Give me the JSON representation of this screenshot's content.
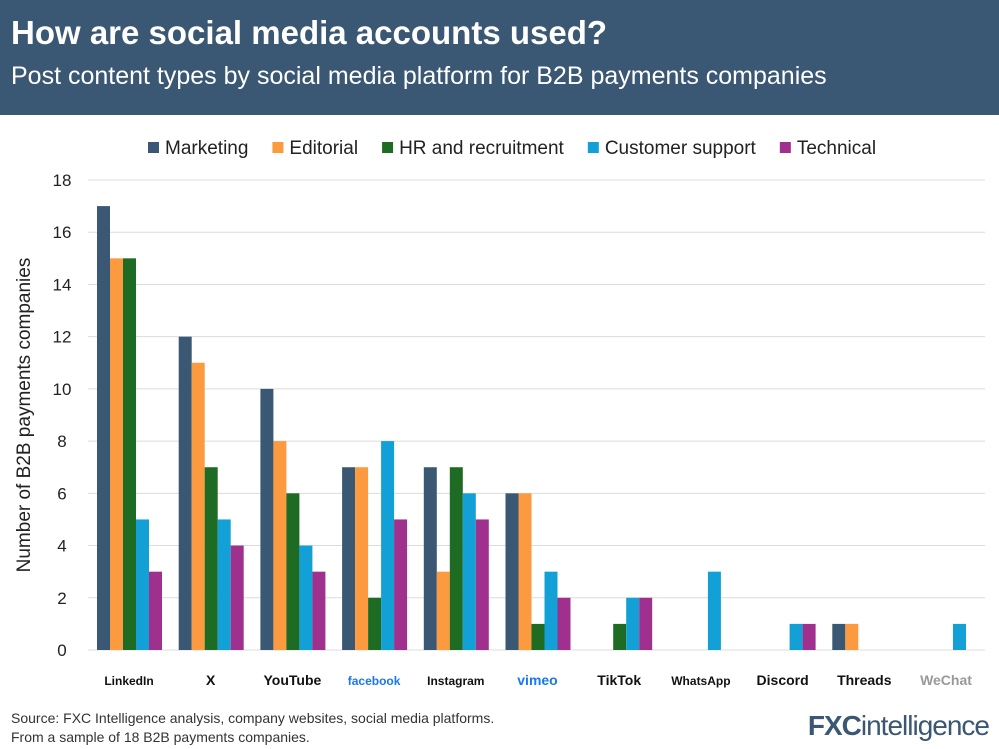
{
  "header": {
    "title": "How are social media accounts used?",
    "subtitle": "Post content types by social media platform for B2B payments companies"
  },
  "chart_data": {
    "type": "bar",
    "title": "How are social media accounts used?",
    "subtitle": "Post content types by social media platform for B2B payments companies",
    "xlabel": "",
    "ylabel": "Number of B2B payments companies",
    "ylim": [
      0,
      18
    ],
    "yticks": [
      0,
      2,
      4,
      6,
      8,
      10,
      12,
      14,
      16,
      18
    ],
    "grid": true,
    "legend": "top",
    "categories": [
      "LinkedIn",
      "X",
      "YouTube",
      "facebook",
      "Instagram",
      "vimeo",
      "TikTok",
      "WhatsApp",
      "Discord",
      "Threads",
      "WeChat"
    ],
    "series": [
      {
        "name": "Marketing",
        "color": "#3a5773",
        "values": [
          17,
          12,
          10,
          7,
          7,
          6,
          0,
          0,
          0,
          1,
          0
        ]
      },
      {
        "name": "Editorial",
        "color": "#fb9a3e",
        "values": [
          15,
          11,
          8,
          7,
          3,
          6,
          0,
          0,
          0,
          1,
          0
        ]
      },
      {
        "name": "HR and recruitment",
        "color": "#1e6b24",
        "values": [
          15,
          7,
          6,
          2,
          7,
          1,
          1,
          0,
          0,
          0,
          0
        ]
      },
      {
        "name": "Customer support",
        "color": "#12a0d7",
        "values": [
          5,
          5,
          4,
          8,
          6,
          3,
          2,
          3,
          1,
          0,
          1
        ]
      },
      {
        "name": "Technical",
        "color": "#a0308e",
        "values": [
          3,
          4,
          3,
          5,
          5,
          2,
          2,
          0,
          1,
          0,
          0
        ]
      }
    ]
  },
  "footer": {
    "source": "Source: FXC Intelligence analysis, company websites, social media platforms.",
    "note": "From a sample of 18 B2B payments companies.",
    "logo": "FXCintelligence"
  }
}
